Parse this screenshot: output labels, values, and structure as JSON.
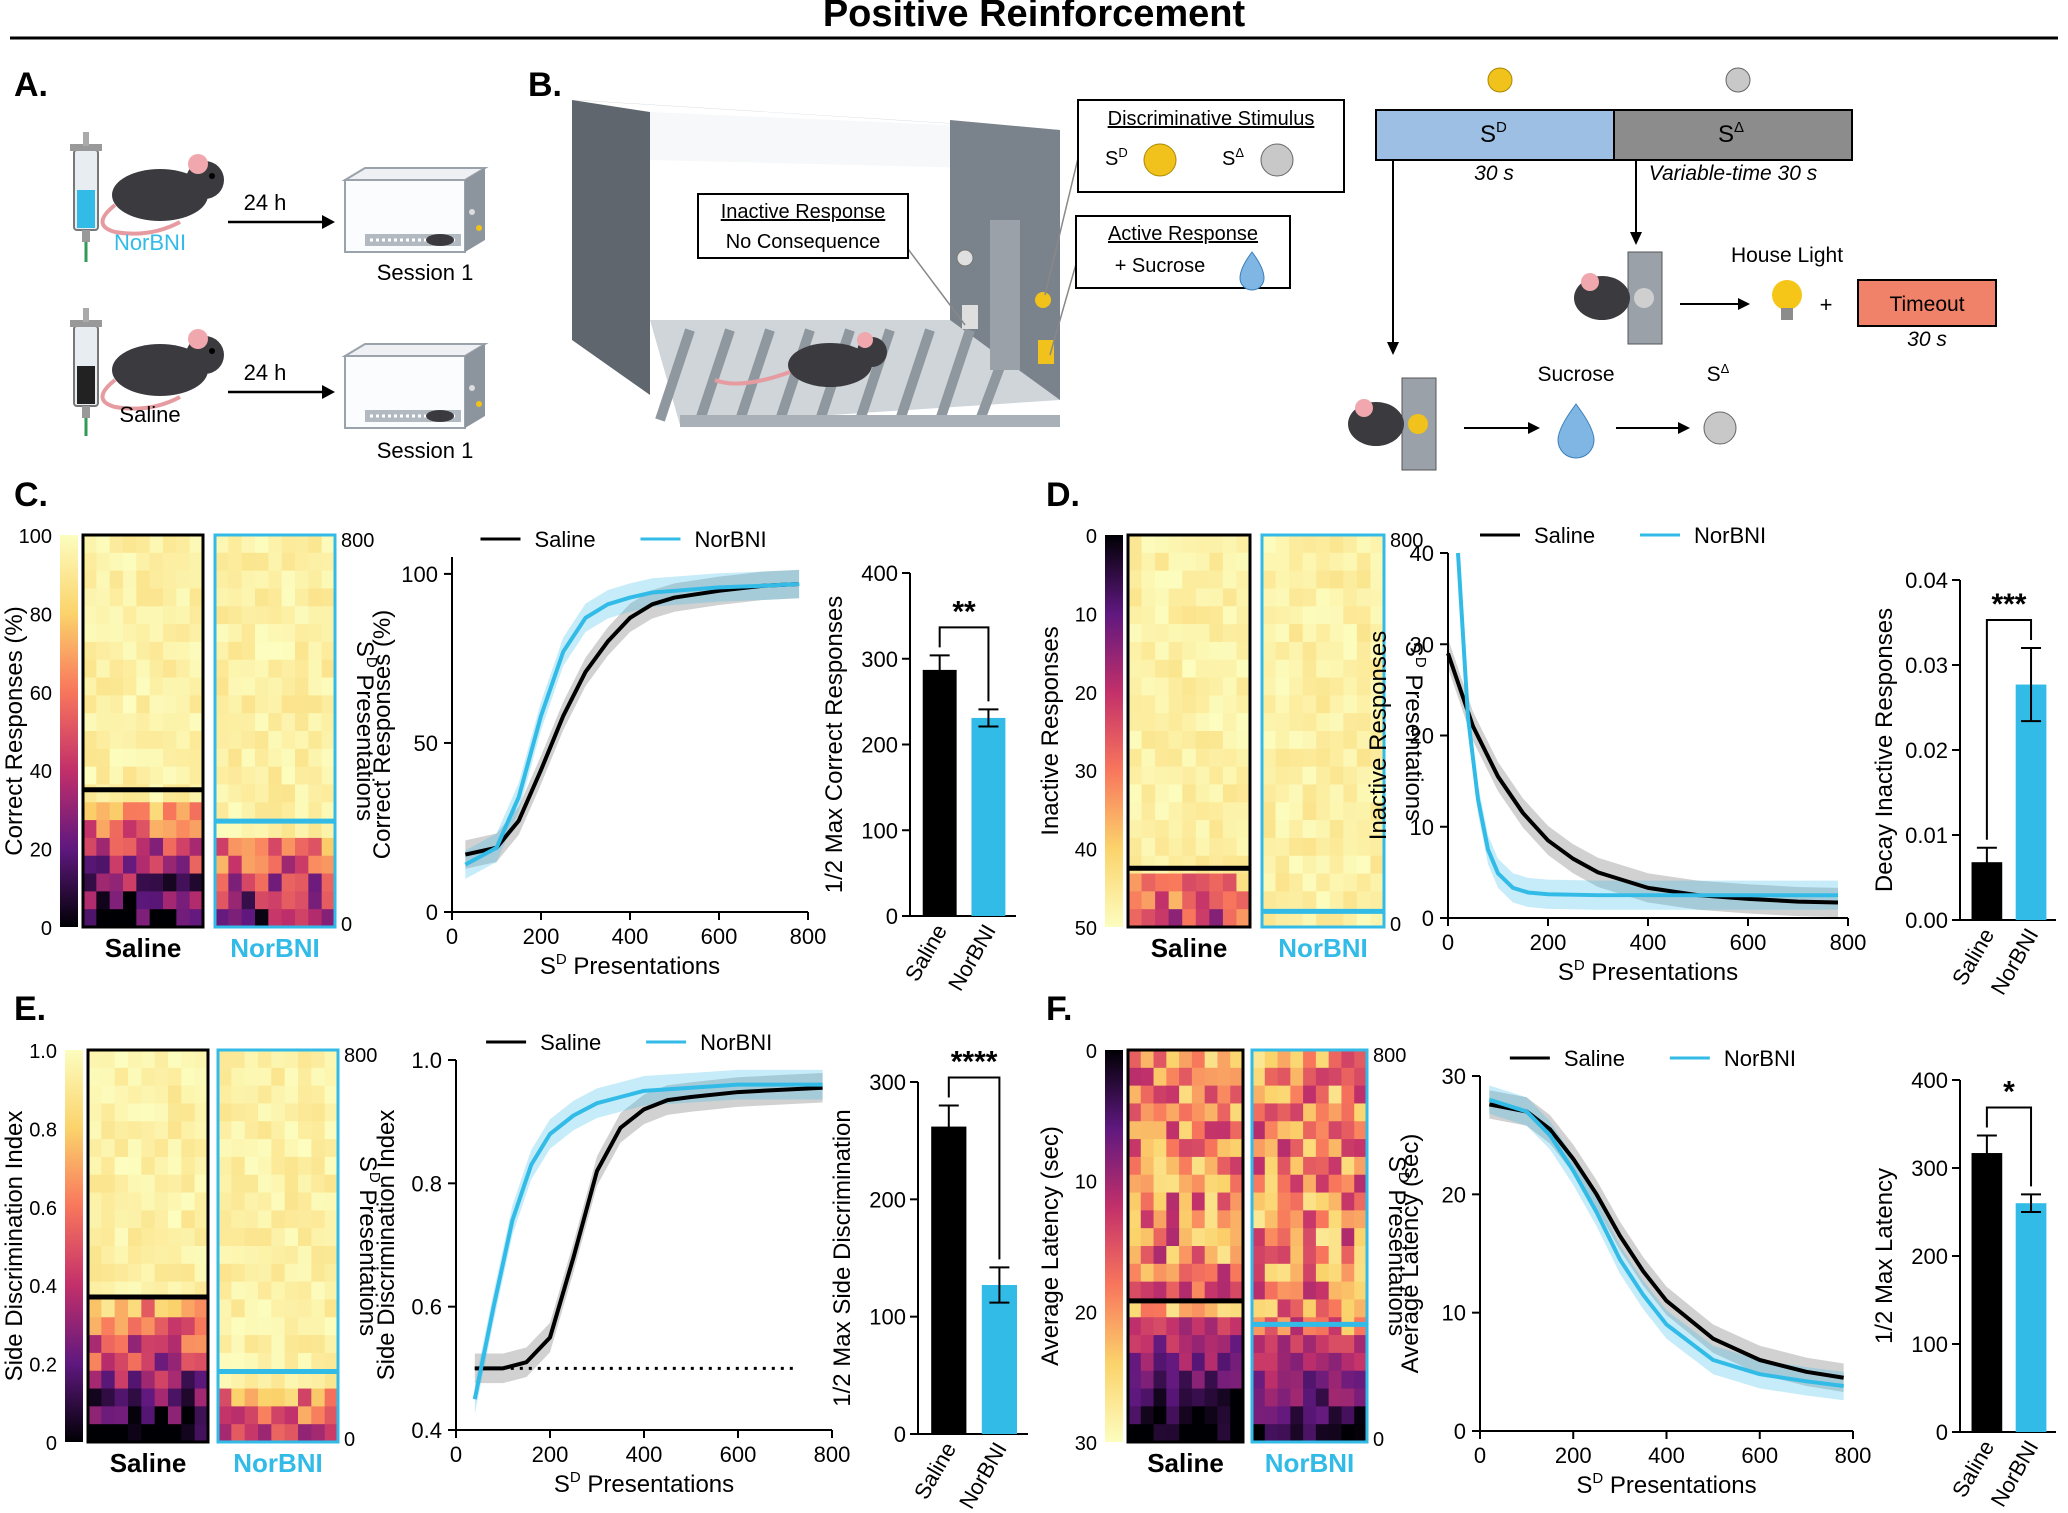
{
  "colors": {
    "saline": "#000000",
    "norbni": "#33bbe8",
    "timeout": "#f0826a",
    "sd_bar": "#9ebfe4",
    "sdelta_bar": "#8c8c8c",
    "water": "#7fb6e4",
    "light": "#f5c518"
  },
  "title": "Positive Reinforcement",
  "panels": {
    "A": "A.",
    "B": "B.",
    "C": "C.",
    "D": "D.",
    "E": "E.",
    "F": "F."
  },
  "panel_a": {
    "norbni_label": "NorBNI",
    "saline_label": "Saline",
    "delay": "24 h",
    "session": "Session 1",
    "icons": [
      "syringe-icon",
      "mouse-icon",
      "chamber-icon"
    ]
  },
  "panel_b": {
    "inactive_title": "Inactive Response",
    "inactive_sub": "No Consequence",
    "disc_title": "Discriminative Stimulus",
    "sd": "S",
    "sd_sup": "D",
    "sdelta_sup": "Δ",
    "active_title": "Active Response",
    "active_sub": "+ Sucrose",
    "sd_duration": "30 s",
    "sdelta_duration": "Variable-time 30 s",
    "house_light": "House Light",
    "plus": "+",
    "timeout": "Timeout",
    "timeout_duration": "30 s",
    "sucrose": "Sucrose"
  },
  "common": {
    "saline": "Saline",
    "norbni": "NorBNI",
    "sd_presentations": "Presentations",
    "sd_letter": "S",
    "sd_sup": "D",
    "stars_c": "**",
    "stars_d": "***",
    "stars_e": "****",
    "stars_f": "*"
  },
  "heatmaps": {
    "C": {
      "ylabel": "Correct Responses (%)",
      "cb_ticks": [
        "100",
        "80",
        "60",
        "40",
        "20",
        "0"
      ],
      "right_ticks": [
        "800",
        "0"
      ]
    },
    "D": {
      "ylabel": "Inactive Responses",
      "cb_ticks": [
        "0",
        "10",
        "20",
        "30",
        "40",
        "50"
      ],
      "right_ticks": [
        "800",
        "0"
      ]
    },
    "E": {
      "ylabel": "Side Discrimination Index",
      "cb_ticks": [
        "1.0",
        "0.8",
        "0.6",
        "0.4",
        "0.2",
        "0"
      ],
      "right_ticks": [
        "800",
        "0"
      ]
    },
    "F": {
      "ylabel": "Average Latency (sec)",
      "cb_ticks": [
        "0",
        "10",
        "20",
        "30"
      ],
      "right_ticks": [
        "800",
        "0"
      ]
    }
  },
  "chart_data": [
    {
      "panel": "C",
      "type": "line",
      "ylabel": "Correct Responses (%)",
      "xlabel": "Presentations",
      "xlim": [
        0,
        800
      ],
      "ylim": [
        0,
        105
      ],
      "xticks": [
        0,
        200,
        400,
        600,
        800
      ],
      "yticks": [
        0,
        50,
        100
      ],
      "legend": "top",
      "series": [
        {
          "name": "Saline",
          "x": [
            30,
            100,
            150,
            200,
            250,
            300,
            350,
            400,
            450,
            500,
            600,
            700,
            780
          ],
          "y": [
            17,
            19,
            27,
            42,
            58,
            71,
            80,
            87,
            91,
            93,
            95,
            96.5,
            97
          ]
        },
        {
          "name": "NorBNI",
          "x": [
            30,
            100,
            150,
            200,
            250,
            300,
            350,
            400,
            450,
            500,
            600,
            700,
            780
          ],
          "y": [
            14,
            19,
            34,
            58,
            77,
            87,
            91,
            93,
            94.5,
            95,
            96,
            96.5,
            97
          ]
        }
      ]
    },
    {
      "panel": "C",
      "type": "bar",
      "ylabel": "1/2 Max Correct Responses",
      "categories": [
        "Saline",
        "NorBNI"
      ],
      "values": [
        287,
        231
      ],
      "errors": [
        17,
        10
      ],
      "ylim": [
        0,
        400
      ],
      "yticks": [
        0,
        100,
        200,
        300,
        400
      ]
    },
    {
      "panel": "D",
      "type": "line",
      "ylabel": "Inactive Responses",
      "xlabel": "Presentations",
      "xlim": [
        0,
        800
      ],
      "ylim": [
        0,
        40
      ],
      "xticks": [
        0,
        200,
        400,
        600,
        800
      ],
      "yticks": [
        0,
        10,
        20,
        30,
        40
      ],
      "legend": "top",
      "series": [
        {
          "name": "Saline",
          "x": [
            0,
            50,
            100,
            150,
            200,
            250,
            300,
            400,
            500,
            600,
            700,
            780
          ],
          "y": [
            29,
            21,
            15.5,
            11.5,
            8.5,
            6.5,
            5,
            3.3,
            2.5,
            2.1,
            1.8,
            1.7
          ]
        },
        {
          "name": "NorBNI",
          "x": [
            20,
            40,
            60,
            80,
            100,
            130,
            160,
            200,
            300,
            500,
            780
          ],
          "y": [
            40,
            22,
            13,
            7.5,
            4.9,
            3.3,
            2.8,
            2.6,
            2.5,
            2.5,
            2.5
          ]
        }
      ]
    },
    {
      "panel": "D",
      "type": "bar",
      "ylabel": "Decay Inactive Responses",
      "categories": [
        "Saline",
        "NorBNI"
      ],
      "values": [
        0.0068,
        0.0277
      ],
      "errors": [
        0.0017,
        0.0043
      ],
      "ylim": [
        0,
        0.04
      ],
      "yticks": [
        "0.00",
        "0.01",
        "0.02",
        "0.03",
        "0.04"
      ]
    },
    {
      "panel": "E",
      "type": "line",
      "ylabel": "Side Discrimination Index",
      "xlabel": "Presentations",
      "xlim": [
        0,
        800
      ],
      "ylim": [
        0.4,
        1.0
      ],
      "xticks": [
        0,
        200,
        400,
        600,
        800
      ],
      "yticks": [
        "0.4",
        "0.6",
        "0.8",
        "1.0"
      ],
      "legend": "top",
      "chance_line": 0.5,
      "series": [
        {
          "name": "Saline",
          "x": [
            40,
            100,
            150,
            200,
            250,
            300,
            350,
            400,
            450,
            500,
            600,
            700,
            780
          ],
          "y": [
            0.5,
            0.5,
            0.51,
            0.55,
            0.68,
            0.82,
            0.89,
            0.92,
            0.935,
            0.94,
            0.948,
            0.952,
            0.955
          ]
        },
        {
          "name": "NorBNI",
          "x": [
            40,
            80,
            120,
            160,
            200,
            250,
            300,
            350,
            400,
            500,
            600,
            780
          ],
          "y": [
            0.45,
            0.6,
            0.74,
            0.83,
            0.88,
            0.91,
            0.93,
            0.94,
            0.95,
            0.955,
            0.96,
            0.96
          ]
        }
      ]
    },
    {
      "panel": "E",
      "type": "bar",
      "ylabel": "1/2 Max Side Discrimination",
      "categories": [
        "Saline",
        "NorBNI"
      ],
      "values": [
        262,
        127
      ],
      "errors": [
        18,
        15
      ],
      "ylim": [
        0,
        300
      ],
      "yticks": [
        0,
        100,
        200,
        300
      ]
    },
    {
      "panel": "F",
      "type": "line",
      "ylabel": "Average Latency (sec)",
      "xlabel": "Presentations",
      "xlim": [
        0,
        800
      ],
      "ylim": [
        0,
        30
      ],
      "xticks": [
        0,
        200,
        400,
        600,
        800
      ],
      "yticks": [
        0,
        10,
        20,
        30
      ],
      "legend": "top",
      "series": [
        {
          "name": "Saline",
          "x": [
            20,
            100,
            150,
            200,
            250,
            300,
            350,
            400,
            500,
            600,
            700,
            780
          ],
          "y": [
            27.6,
            27,
            25.5,
            23,
            20,
            16.5,
            13.5,
            11,
            7.8,
            6,
            5,
            4.5
          ]
        },
        {
          "name": "NorBNI",
          "x": [
            20,
            100,
            150,
            200,
            250,
            300,
            350,
            400,
            500,
            600,
            700,
            780
          ],
          "y": [
            28,
            27,
            25,
            22,
            18.5,
            14.5,
            11.5,
            9,
            6,
            4.8,
            4.2,
            3.8
          ]
        }
      ]
    },
    {
      "panel": "F",
      "type": "bar",
      "ylabel": "1/2 Max Latency",
      "categories": [
        "Saline",
        "NorBNI"
      ],
      "values": [
        317,
        260
      ],
      "errors": [
        20,
        10
      ],
      "ylim": [
        0,
        400
      ],
      "yticks": [
        0,
        100,
        200,
        300,
        400
      ]
    }
  ]
}
